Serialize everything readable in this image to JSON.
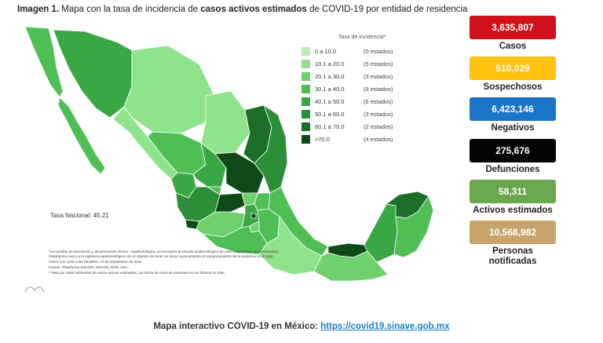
{
  "title": {
    "prefix": "Imagen 1.",
    "part1": " Mapa con la tasa de incidencia de ",
    "bold": "casos activos estimados",
    "part2": " de COVID-19 por entidad de residencia"
  },
  "legend": {
    "title": "Tasa de incidencia*",
    "items": [
      {
        "range": "0  a  10.0",
        "count": "(0 estados)",
        "color": "#b9eeb4"
      },
      {
        "range": "10.1 a  20.0",
        "count": "(5 estados)",
        "color": "#8fe38c"
      },
      {
        "range": "20.1 a  30.0",
        "count": "(3 estados)",
        "color": "#6fd06e"
      },
      {
        "range": "30.1 a  40.0",
        "count": "(9 estados)",
        "color": "#4fbf55"
      },
      {
        "range": "40.1 a  50.0",
        "count": "(6 estados)",
        "color": "#3aa745"
      },
      {
        "range": "50.1 a  60.0",
        "count": "(3 estados)",
        "color": "#2a8f37"
      },
      {
        "range": "60.1 a  70.0",
        "count": "(2 estados)",
        "color": "#1c6e28"
      },
      {
        "range": ">70.0",
        "count": "(4 estados)",
        "color": "#0e4a17"
      }
    ]
  },
  "national_rate": "Tasa Nacional: 45.21",
  "notes": [
    "*La variable de asociación y dictaminación clínica - epidemiológica, se incorporó al estudio epidemiológico de caso sospechoso de enfermedad respiratoria viral y a la vigilancia epidemiológica con el objetivo de tener un mejor acercamiento al comportamiento de la epidemia en el país.",
    "Cierre con corte a las 09:00hrs, 27 de septiembre de 2021",
    "Fuente: Plataforma SISVER, SINAVE, DGE, SSA.",
    "* Tasa por 100k habitantes de casos activos estimados, por fecha de inicio de síntomas en los últimos 14 días."
  ],
  "stats": [
    {
      "value": "3,635,807",
      "label": "Casos",
      "color": "#d0111b"
    },
    {
      "value": "510,029",
      "label": "Sospechosos",
      "color": "#ffc20e"
    },
    {
      "value": "6,423,146",
      "label": "Negativos",
      "color": "#1b75c8"
    },
    {
      "value": "275,676",
      "label": "Defunciones",
      "color": "#050505"
    },
    {
      "value": "58,311",
      "label": "Activos estimados",
      "color": "#6aa84f"
    },
    {
      "value": "10,568,982",
      "label": "Personas notificadas",
      "color": "#c7a46c"
    }
  ],
  "footer": {
    "text": "Mapa interactivo COVID-19 en México: ",
    "link": "https://covid19.sinave.gob.mx"
  }
}
